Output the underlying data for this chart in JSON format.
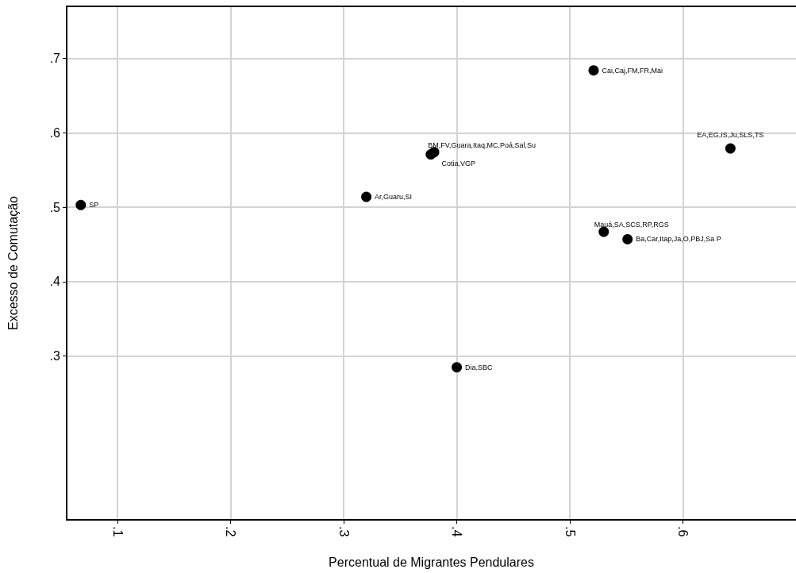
{
  "chart_data": {
    "type": "scatter",
    "xlabel": "Percentual de Migrantes Pendulares",
    "ylabel": "Excesso de Comutação",
    "x": [
      0.0675,
      0.32,
      0.377,
      0.38,
      0.4,
      0.521,
      0.53,
      0.551,
      0.642
    ],
    "series": [
      {
        "color": "#000000",
        "values": [
          0.503,
          0.514,
          0.571,
          0.574,
          0.285,
          0.684,
          0.467,
          0.457,
          0.579
        ]
      }
    ],
    "annotations": [
      {
        "text": "SP",
        "x": 0.0675,
        "y": 0.503
      },
      {
        "text": "Ar,Guaru,SI",
        "x": 0.32,
        "y": 0.514
      },
      {
        "text": "Cotia,VGP",
        "x": 0.377,
        "y": 0.571
      },
      {
        "text": "BM,FV,Guara,Itaq,MC,Poá,Sal,Su",
        "x": 0.38,
        "y": 0.574
      },
      {
        "text": "Dia,SBC",
        "x": 0.4,
        "y": 0.285
      },
      {
        "text": "Cai,Caj,FM,FR,Mai",
        "x": 0.521,
        "y": 0.684
      },
      {
        "text": "Mauá,SA,SCS,RP,RGS",
        "x": 0.53,
        "y": 0.467
      },
      {
        "text": "Ba,Car,Itap,Ja,O,PBJ,Sa P",
        "x": 0.551,
        "y": 0.457
      },
      {
        "text": "EA,EG,IS,Ju,SLS,TS",
        "x": 0.642,
        "y": 0.579
      }
    ],
    "xlim": [
      0.055,
      0.7
    ],
    "ylim": [
      0.08,
      0.77
    ],
    "xticks": [
      {
        "value": 0.1,
        "label": ".1"
      },
      {
        "value": 0.2,
        "label": ".2"
      },
      {
        "value": 0.3,
        "label": ".3"
      },
      {
        "value": 0.4,
        "label": ".4"
      },
      {
        "value": 0.5,
        "label": ".5"
      },
      {
        "value": 0.6,
        "label": ".6"
      }
    ],
    "yticks": [
      {
        "value": 0.3,
        "label": ".3"
      },
      {
        "value": 0.4,
        "label": ".4"
      },
      {
        "value": 0.5,
        "label": ".5"
      },
      {
        "value": 0.6,
        "label": ".6"
      },
      {
        "value": 0.7,
        "label": ".7"
      }
    ],
    "grid": true,
    "marker": "circle"
  }
}
